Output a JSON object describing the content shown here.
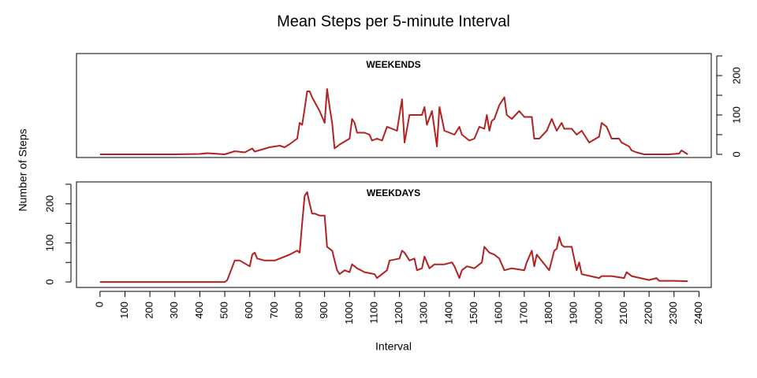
{
  "figure": {
    "title": "Mean Steps per 5-minute Interval",
    "xlabel": "Interval",
    "ylabel": "Number of Steps"
  },
  "chart_data": [
    {
      "type": "line",
      "title": "WEEKENDS",
      "color": "#b22222",
      "yaxis_side": "right",
      "xlim": [
        -94.2,
        2449.2
      ],
      "ylim": [
        -8,
        256
      ],
      "yticks": [
        0,
        100,
        200
      ],
      "yminorticks": [
        50,
        150,
        250
      ],
      "x": [
        0,
        100,
        200,
        300,
        400,
        430,
        500,
        540,
        580,
        610,
        620,
        680,
        720,
        740,
        760,
        790,
        800,
        810,
        820,
        830,
        840,
        850,
        880,
        900,
        910,
        920,
        930,
        940,
        960,
        1000,
        1010,
        1020,
        1030,
        1060,
        1080,
        1090,
        1110,
        1130,
        1150,
        1190,
        1210,
        1220,
        1240,
        1290,
        1300,
        1310,
        1330,
        1350,
        1360,
        1380,
        1420,
        1440,
        1450,
        1480,
        1500,
        1520,
        1540,
        1550,
        1560,
        1570,
        1580,
        1600,
        1620,
        1630,
        1650,
        1680,
        1700,
        1730,
        1740,
        1760,
        1790,
        1810,
        1830,
        1850,
        1860,
        1890,
        1910,
        1930,
        1960,
        2000,
        2010,
        2030,
        2050,
        2080,
        2090,
        2120,
        2130,
        2150,
        2180,
        2250,
        2280,
        2320,
        2330,
        2355
      ],
      "values": [
        0,
        0,
        0,
        0,
        1,
        3,
        0,
        8,
        5,
        15,
        7,
        18,
        22,
        18,
        26,
        40,
        80,
        75,
        115,
        160,
        160,
        145,
        110,
        80,
        166,
        120,
        80,
        15,
        25,
        40,
        90,
        80,
        55,
        55,
        50,
        35,
        40,
        35,
        70,
        60,
        140,
        30,
        100,
        100,
        120,
        75,
        110,
        20,
        120,
        60,
        50,
        70,
        50,
        35,
        40,
        70,
        65,
        100,
        60,
        85,
        90,
        125,
        145,
        100,
        90,
        110,
        95,
        95,
        40,
        40,
        60,
        90,
        60,
        80,
        65,
        65,
        50,
        60,
        30,
        45,
        80,
        70,
        40,
        40,
        30,
        20,
        10,
        5,
        0,
        0,
        0,
        2,
        10,
        0
      ]
    },
    {
      "type": "line",
      "title": "WEEKDAYS",
      "color": "#b22222",
      "yaxis_side": "left",
      "xlim": [
        -94.2,
        2449.2
      ],
      "ylim": [
        -14,
        256
      ],
      "yticks": [
        0,
        100,
        200
      ],
      "yminorticks": [
        50,
        150,
        250
      ],
      "xticks": [
        0,
        100,
        200,
        300,
        400,
        500,
        600,
        700,
        800,
        900,
        1000,
        1100,
        1200,
        1300,
        1400,
        1500,
        1600,
        1700,
        1800,
        1900,
        2000,
        2100,
        2200,
        2300,
        2400
      ],
      "x": [
        0,
        500,
        510,
        540,
        560,
        600,
        610,
        620,
        630,
        660,
        700,
        720,
        740,
        760,
        790,
        800,
        810,
        820,
        830,
        840,
        850,
        860,
        880,
        900,
        910,
        930,
        950,
        960,
        980,
        1000,
        1010,
        1030,
        1060,
        1100,
        1110,
        1130,
        1150,
        1160,
        1200,
        1210,
        1220,
        1240,
        1260,
        1270,
        1290,
        1300,
        1320,
        1340,
        1380,
        1410,
        1420,
        1440,
        1450,
        1470,
        1500,
        1530,
        1540,
        1560,
        1580,
        1600,
        1620,
        1650,
        1700,
        1710,
        1730,
        1740,
        1750,
        1800,
        1820,
        1830,
        1840,
        1850,
        1860,
        1890,
        1910,
        1920,
        1930,
        2000,
        2010,
        2050,
        2100,
        2110,
        2130,
        2200,
        2230,
        2240,
        2300,
        2355
      ],
      "values": [
        0,
        0,
        5,
        55,
        55,
        40,
        70,
        75,
        60,
        55,
        55,
        60,
        65,
        70,
        80,
        75,
        150,
        220,
        230,
        200,
        175,
        175,
        170,
        170,
        90,
        80,
        30,
        20,
        30,
        25,
        45,
        35,
        25,
        20,
        10,
        20,
        30,
        55,
        60,
        80,
        75,
        55,
        60,
        30,
        35,
        65,
        35,
        45,
        45,
        50,
        40,
        10,
        30,
        40,
        35,
        50,
        90,
        75,
        70,
        60,
        30,
        35,
        30,
        50,
        80,
        40,
        70,
        30,
        80,
        85,
        115,
        95,
        90,
        90,
        30,
        50,
        20,
        10,
        15,
        15,
        10,
        25,
        15,
        5,
        10,
        3,
        3,
        2
      ]
    }
  ]
}
